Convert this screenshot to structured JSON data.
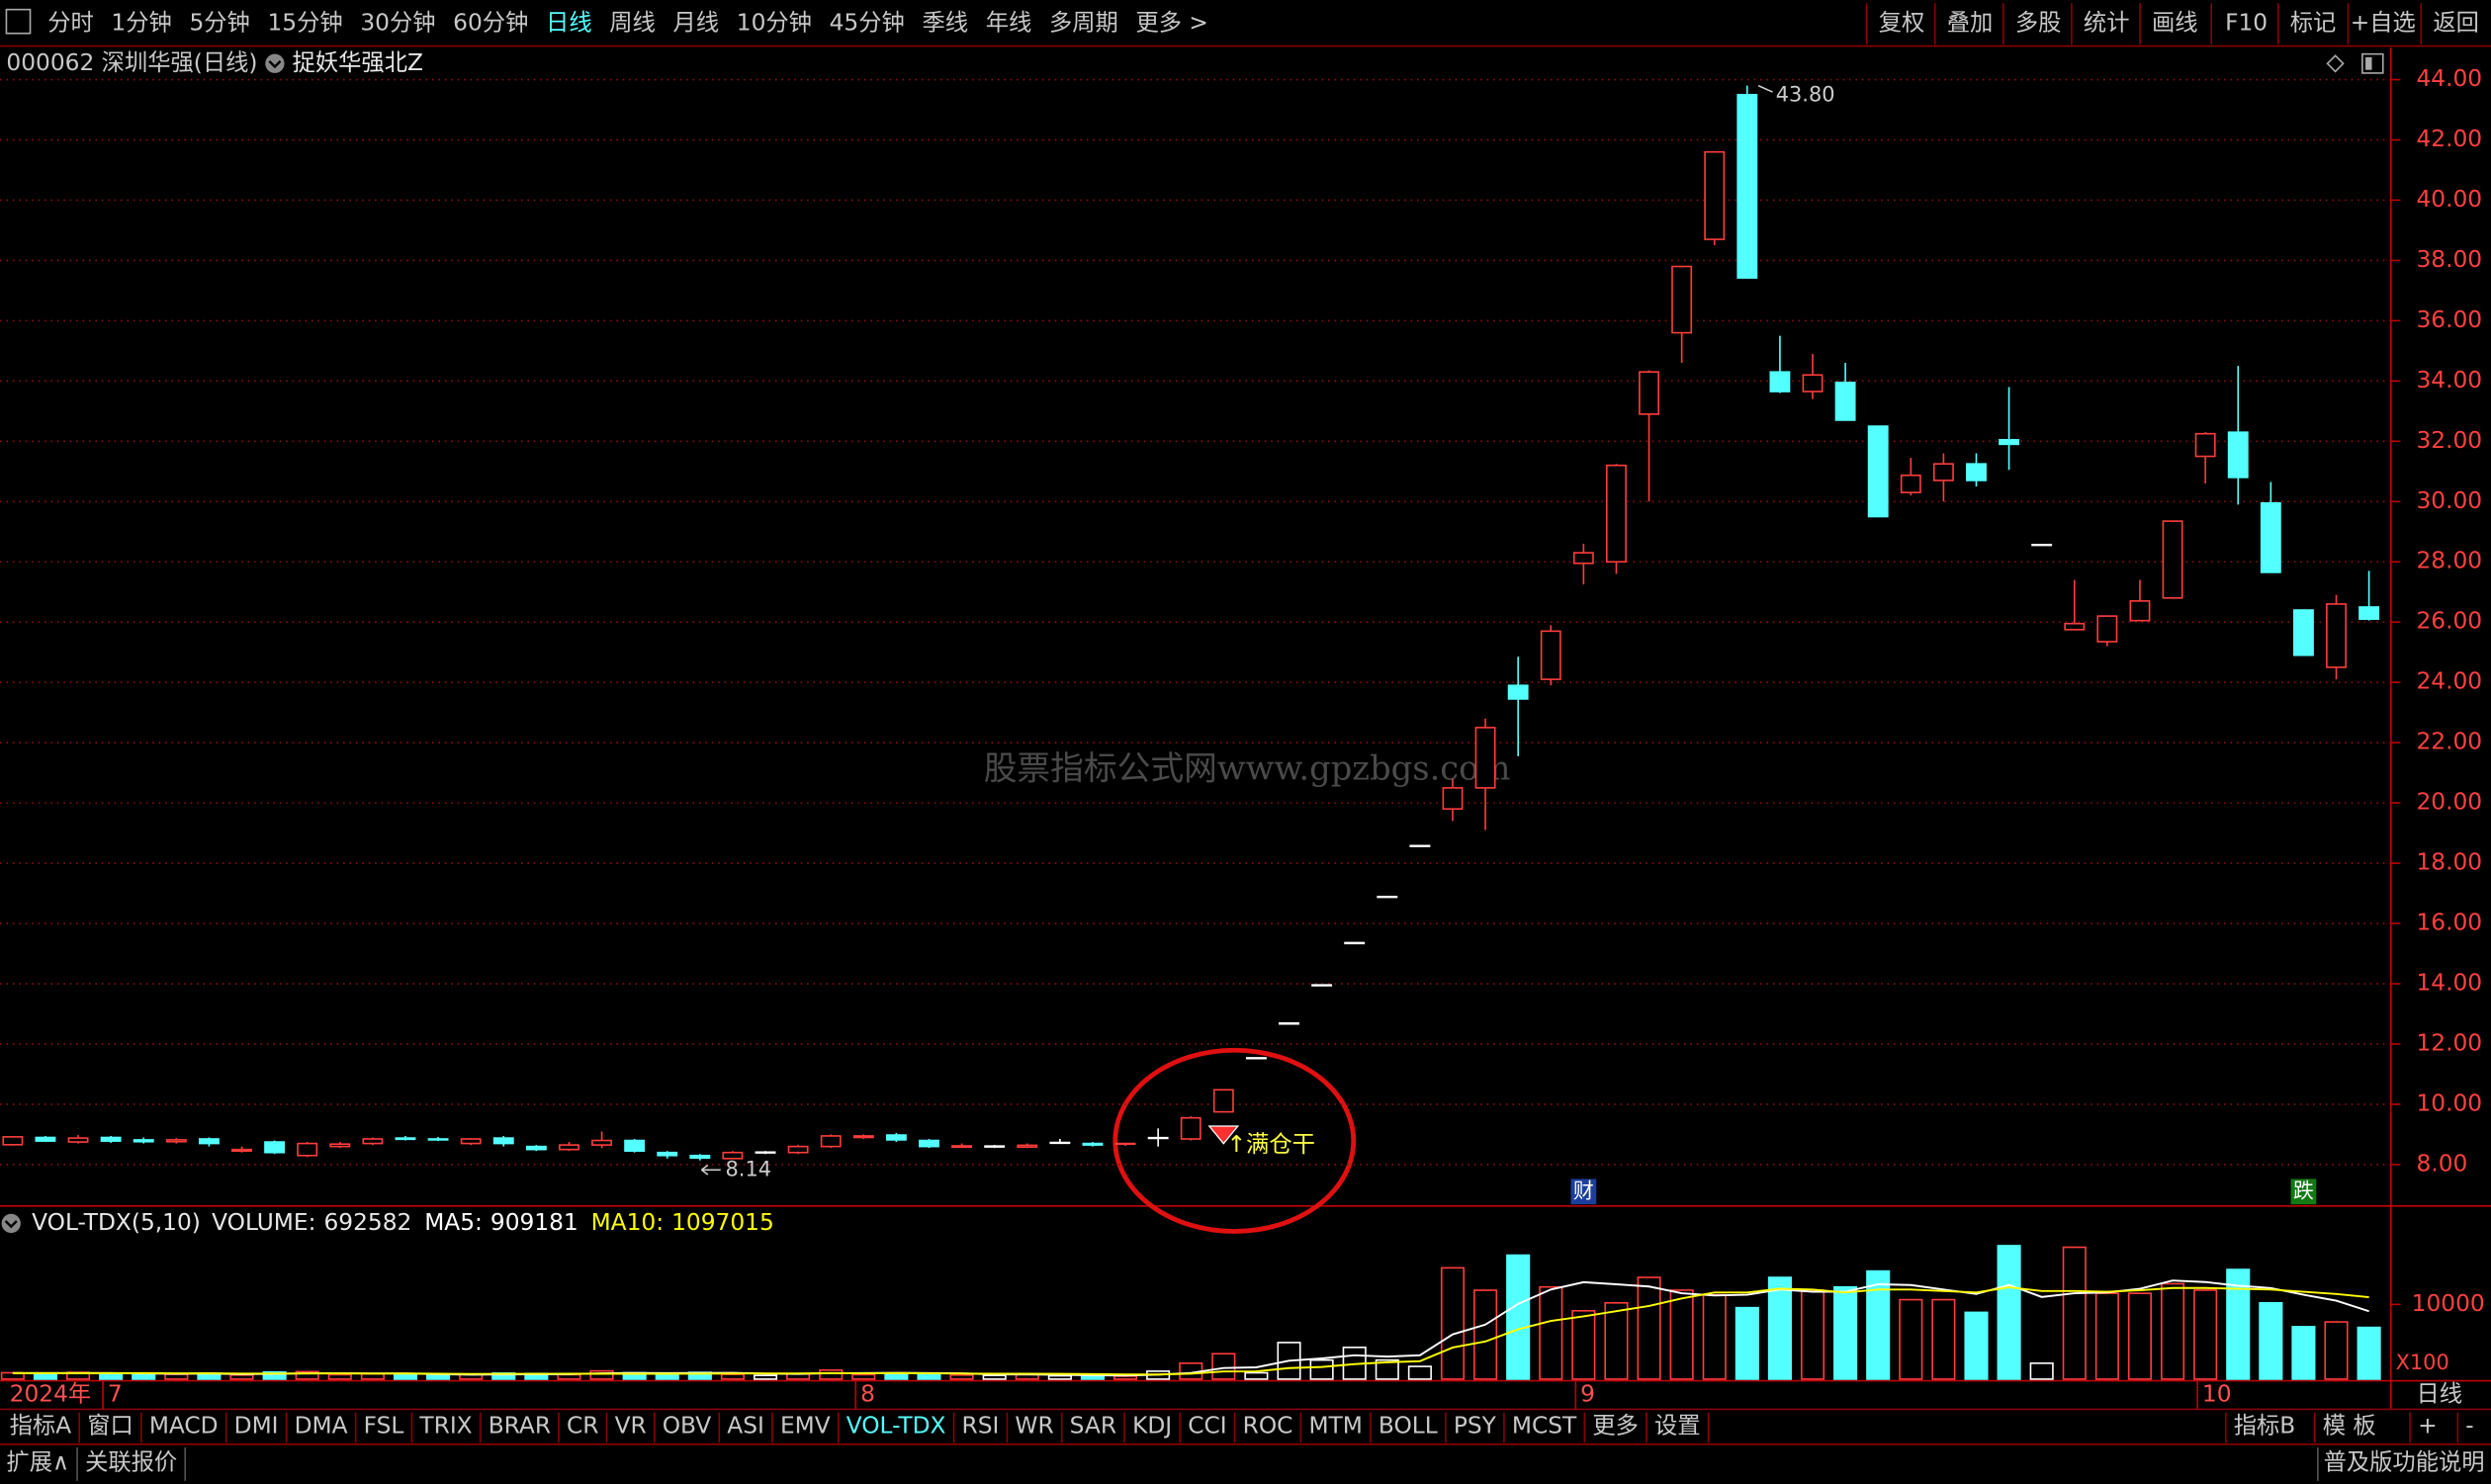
{
  "toolbar": {
    "left": [
      "分时",
      "1分钟",
      "5分钟",
      "15分钟",
      "30分钟",
      "60分钟",
      "日线",
      "周线",
      "月线",
      "10分钟",
      "45分钟",
      "季线",
      "年线",
      "多周期",
      "更多 >"
    ],
    "active": 6,
    "right": [
      "复权",
      "叠加",
      "多股",
      "统计",
      "画线",
      "F10",
      "标记",
      "+自选",
      "返回"
    ]
  },
  "header": {
    "code_title": "000062 深圳华强(日线)",
    "indicator": "捉妖华强北Z"
  },
  "watermark": "股票指标公式网www.gpzbgs.com",
  "chart_data": [
    {
      "type": "candlestick",
      "year_label": "2024年",
      "period_label": "日线",
      "categories": [
        null,
        null,
        null,
        "7",
        null,
        null,
        null,
        null,
        null,
        null,
        null,
        null,
        null,
        null,
        null,
        null,
        null,
        null,
        null,
        null,
        null,
        null,
        null,
        null,
        null,
        null,
        "8",
        null,
        null,
        null,
        null,
        null,
        null,
        null,
        null,
        null,
        null,
        null,
        null,
        null,
        null,
        null,
        null,
        null,
        null,
        null,
        null,
        null,
        "9",
        null,
        null,
        null,
        null,
        null,
        null,
        null,
        null,
        null,
        null,
        null,
        null,
        null,
        null,
        null,
        null,
        null,
        null,
        "10",
        null,
        null,
        null,
        null,
        null
      ],
      "open": [
        8.66,
        8.9,
        8.75,
        8.9,
        8.82,
        8.76,
        8.85,
        8.45,
        8.75,
        8.3,
        8.6,
        8.7,
        8.88,
        8.85,
        8.7,
        8.88,
        8.6,
        8.5,
        8.65,
        8.8,
        8.4,
        8.3,
        8.2,
        8.4,
        8.4,
        8.6,
        8.9,
        8.98,
        8.8,
        8.58,
        8.6,
        8.58,
        8.72,
        8.7,
        8.68,
        8.88,
        8.85,
        9.75,
        11.53,
        12.68,
        13.95,
        15.35,
        16.88,
        18.57,
        19.8,
        20.5,
        23.9,
        24.1,
        27.95,
        28.0,
        32.9,
        35.6,
        38.7,
        43.5,
        34.3,
        33.65,
        33.95,
        32.5,
        30.3,
        30.7,
        31.25,
        32.05,
        28.56,
        25.75,
        25.35,
        26.05,
        26.8,
        31.5,
        32.3,
        29.95,
        26.4,
        24.5,
        26.5
      ],
      "high": [
        8.95,
        8.95,
        8.98,
        8.95,
        8.9,
        8.88,
        8.9,
        8.6,
        8.8,
        8.75,
        8.75,
        8.9,
        8.95,
        8.92,
        8.88,
        8.95,
        8.65,
        8.75,
        9.1,
        8.85,
        8.45,
        8.35,
        8.45,
        8.45,
        8.65,
        9.0,
        9.0,
        9.05,
        8.85,
        8.7,
        8.65,
        8.7,
        8.85,
        8.75,
        8.72,
        9.2,
        9.6,
        10.5,
        11.53,
        12.68,
        13.95,
        15.35,
        16.88,
        18.57,
        20.8,
        22.8,
        24.85,
        25.9,
        28.6,
        31.25,
        34.35,
        37.8,
        41.6,
        43.8,
        35.5,
        34.9,
        34.6,
        32.5,
        31.45,
        31.6,
        31.6,
        33.8,
        28.56,
        27.4,
        26.2,
        27.4,
        29.35,
        32.3,
        34.5,
        30.65,
        26.4,
        26.9,
        27.7
      ],
      "low": [
        8.63,
        8.75,
        8.7,
        8.72,
        8.7,
        8.7,
        8.6,
        8.4,
        8.35,
        8.25,
        8.55,
        8.65,
        8.8,
        8.78,
        8.65,
        8.6,
        8.45,
        8.45,
        8.55,
        8.4,
        8.2,
        8.14,
        8.18,
        8.35,
        8.35,
        8.55,
        8.85,
        8.75,
        8.55,
        8.55,
        8.55,
        8.55,
        8.7,
        8.6,
        8.62,
        8.6,
        8.8,
        9.75,
        11.53,
        12.68,
        13.95,
        15.35,
        16.88,
        18.57,
        19.4,
        19.1,
        21.55,
        23.9,
        27.25,
        27.6,
        30.0,
        34.6,
        38.5,
        37.42,
        33.6,
        33.4,
        32.7,
        29.5,
        30.2,
        30.0,
        30.5,
        31.05,
        28.56,
        25.75,
        25.2,
        26.05,
        26.8,
        30.6,
        29.9,
        27.65,
        24.9,
        24.1,
        26.05
      ],
      "close": [
        8.92,
        8.78,
        8.88,
        8.78,
        8.76,
        8.82,
        8.7,
        8.5,
        8.4,
        8.7,
        8.68,
        8.85,
        8.84,
        8.82,
        8.85,
        8.7,
        8.5,
        8.65,
        8.8,
        8.45,
        8.3,
        8.22,
        8.4,
        8.4,
        8.6,
        8.95,
        8.95,
        8.82,
        8.6,
        8.62,
        8.6,
        8.64,
        8.72,
        8.65,
        8.7,
        8.88,
        9.55,
        10.48,
        11.53,
        12.68,
        13.95,
        15.35,
        16.88,
        18.57,
        20.5,
        22.5,
        23.45,
        25.7,
        28.3,
        31.2,
        34.3,
        37.8,
        41.6,
        37.42,
        33.65,
        34.2,
        32.7,
        29.5,
        30.87,
        31.25,
        30.7,
        31.9,
        28.56,
        25.95,
        26.2,
        26.7,
        29.35,
        32.25,
        30.8,
        27.65,
        24.9,
        26.6,
        26.1
      ],
      "up_color": "#ff3c3c",
      "down_color": "#54ffff",
      "flat_color": "#ffffff",
      "high_label": {
        "value": 43.8,
        "label": "43.80"
      },
      "low_label": 8.14,
      "signals": [
        null,
        null,
        null,
        null,
        null,
        null,
        null,
        null,
        null,
        null,
        null,
        null,
        null,
        null,
        null,
        null,
        null,
        null,
        null,
        null,
        null,
        null,
        null,
        null,
        null,
        null,
        null,
        null,
        null,
        null,
        null,
        null,
        null,
        null,
        null,
        null,
        null,
        "↑满仓干",
        null,
        null,
        null,
        null,
        null,
        null,
        null,
        null,
        null,
        null,
        null,
        null,
        null,
        null,
        null,
        null,
        null,
        null,
        null,
        null,
        null,
        null,
        null,
        null,
        null,
        null,
        null,
        null,
        null,
        null,
        null,
        null,
        null,
        null,
        null
      ],
      "markers": [
        null,
        null,
        null,
        null,
        null,
        null,
        null,
        null,
        null,
        null,
        null,
        null,
        null,
        null,
        null,
        null,
        null,
        null,
        null,
        null,
        null,
        null,
        null,
        null,
        null,
        null,
        null,
        null,
        null,
        null,
        null,
        null,
        null,
        null,
        null,
        null,
        null,
        null,
        null,
        null,
        null,
        null,
        null,
        null,
        null,
        null,
        null,
        null,
        {
          "label": "财",
          "color": "#1c3f9c"
        },
        null,
        null,
        null,
        null,
        null,
        null,
        null,
        null,
        null,
        null,
        null,
        null,
        null,
        null,
        null,
        null,
        null,
        null,
        null,
        null,
        null,
        {
          "label": "跌",
          "color": "#127a12"
        },
        null,
        null
      ],
      "ylim": [
        6.68,
        45.06
      ],
      "yticks": [
        {
          "value": 8,
          "label": "8.00"
        },
        {
          "value": 10,
          "label": "10.00"
        },
        {
          "value": 12,
          "label": "12.00"
        },
        {
          "value": 14,
          "label": "14.00"
        },
        {
          "value": 16,
          "label": "16.00"
        },
        {
          "value": 18,
          "label": "18.00"
        },
        {
          "value": 20,
          "label": "20.00"
        },
        {
          "value": 22,
          "label": "22.00"
        },
        {
          "value": 24,
          "label": "24.00"
        },
        {
          "value": 26,
          "label": "26.00"
        },
        {
          "value": 28,
          "label": "28.00"
        },
        {
          "value": 30,
          "label": "30.00"
        },
        {
          "value": 32,
          "label": "32.00"
        },
        {
          "value": 34,
          "label": "34.00"
        },
        {
          "value": 36,
          "label": "36.00"
        },
        {
          "value": 38,
          "label": "38.00"
        },
        {
          "value": 40,
          "label": "40.00"
        },
        {
          "value": 42,
          "label": "42.00"
        },
        {
          "value": 44,
          "label": "44.00"
        }
      ],
      "grid": true
    },
    {
      "type": "bar",
      "indicator": "VOL-TDX(5,10)",
      "multiplier": "X100",
      "series": [
        {
          "name": "VOLUME:",
          "values": [
            85000,
            70000,
            90000,
            75000,
            60000,
            65000,
            80000,
            55000,
            95000,
            100000,
            60000,
            70000,
            55000,
            50000,
            65000,
            80000,
            75000,
            60000,
            110000,
            85000,
            70000,
            90000,
            65000,
            50000,
            70000,
            120000,
            60000,
            75000,
            80000,
            55000,
            50000,
            60000,
            45000,
            50000,
            40000,
            106000,
            213000,
            340000,
            85000,
            490000,
            255000,
            425000,
            255000,
            170000,
            1490000,
            1190000,
            1660000,
            1234000,
            915000,
            1021000,
            1362000,
            1191000,
            1128000,
            957000,
            1362000,
            1191000,
            1234000,
            1447000,
            1064000,
            1064000,
            894000,
            1787000,
            213000,
            1766000,
            1149000,
            1149000,
            1277000,
            1191000,
            1468000,
            1021000,
            702000,
            766000,
            692582
          ]
        },
        {
          "name": "MA5:",
          "type": "line",
          "color": "#ffffff",
          "values": [
            80000,
            80000,
            80000,
            80000,
            76000,
            72000,
            74000,
            67000,
            71000,
            77000,
            78000,
            76000,
            76000,
            67000,
            60000,
            64000,
            65000,
            67000,
            78000,
            83000,
            80000,
            83000,
            84000,
            74000,
            69000,
            79000,
            81000,
            84000,
            81000,
            78000,
            64000,
            64000,
            58000,
            52000,
            49000,
            60000,
            83000,
            149000,
            158000,
            247000,
            277000,
            319000,
            302000,
            319000,
            599000,
            730000,
            1007000,
            1200000,
            1298000,
            1270000,
            1240000,
            1150000,
            1120000,
            1130000,
            1200000,
            1170000,
            1170000,
            1270000,
            1260000,
            1200000,
            1140000,
            1260000,
            1100000,
            1150000,
            1160000,
            1210000,
            1320000,
            1300000,
            1250000,
            1220000,
            1130000,
            1050000,
            909181
          ]
        },
        {
          "name": "MA10:",
          "type": "line",
          "color": "#ffff00",
          "values": [
            80000,
            80000,
            80000,
            80000,
            80000,
            78000,
            77000,
            74000,
            74000,
            76000,
            77000,
            74000,
            75000,
            72000,
            69000,
            71000,
            71000,
            72000,
            72000,
            72000,
            72000,
            73000,
            75000,
            76000,
            76000,
            80000,
            78000,
            80000,
            78000,
            74000,
            72000,
            72000,
            70000,
            67000,
            63000,
            62000,
            73000,
            103000,
            104000,
            148000,
            163000,
            201000,
            226000,
            240000,
            423000,
            504000,
            667000,
            780000,
            840000,
            910000,
            980000,
            1080000,
            1160000,
            1160000,
            1210000,
            1200000,
            1160000,
            1200000,
            1200000,
            1180000,
            1160000,
            1230000,
            1180000,
            1180000,
            1170000,
            1190000,
            1220000,
            1220000,
            1210000,
            1200000,
            1170000,
            1140000,
            1097015
          ]
        }
      ],
      "ylim": [
        0,
        2255000
      ],
      "yticks": [
        {
          "value": 1000000,
          "label": "10000"
        }
      ]
    }
  ],
  "tabs": {
    "left": [
      "指标A",
      "窗口",
      "MACD",
      "DMI",
      "DMA",
      "FSL",
      "TRIX",
      "BRAR",
      "CR",
      "VR",
      "OBV",
      "ASI",
      "EMV",
      "VOL-TDX",
      "RSI",
      "WR",
      "SAR",
      "KDJ",
      "CCI",
      "ROC",
      "MTM",
      "BOLL",
      "PSY",
      "MCST",
      "更多",
      "设置"
    ],
    "active": 13,
    "right": [
      "指标B",
      "模 板",
      "+",
      "-"
    ]
  },
  "statusbar": {
    "left": [
      "扩展∧",
      "关联报价"
    ],
    "right": "普及版功能说明"
  }
}
